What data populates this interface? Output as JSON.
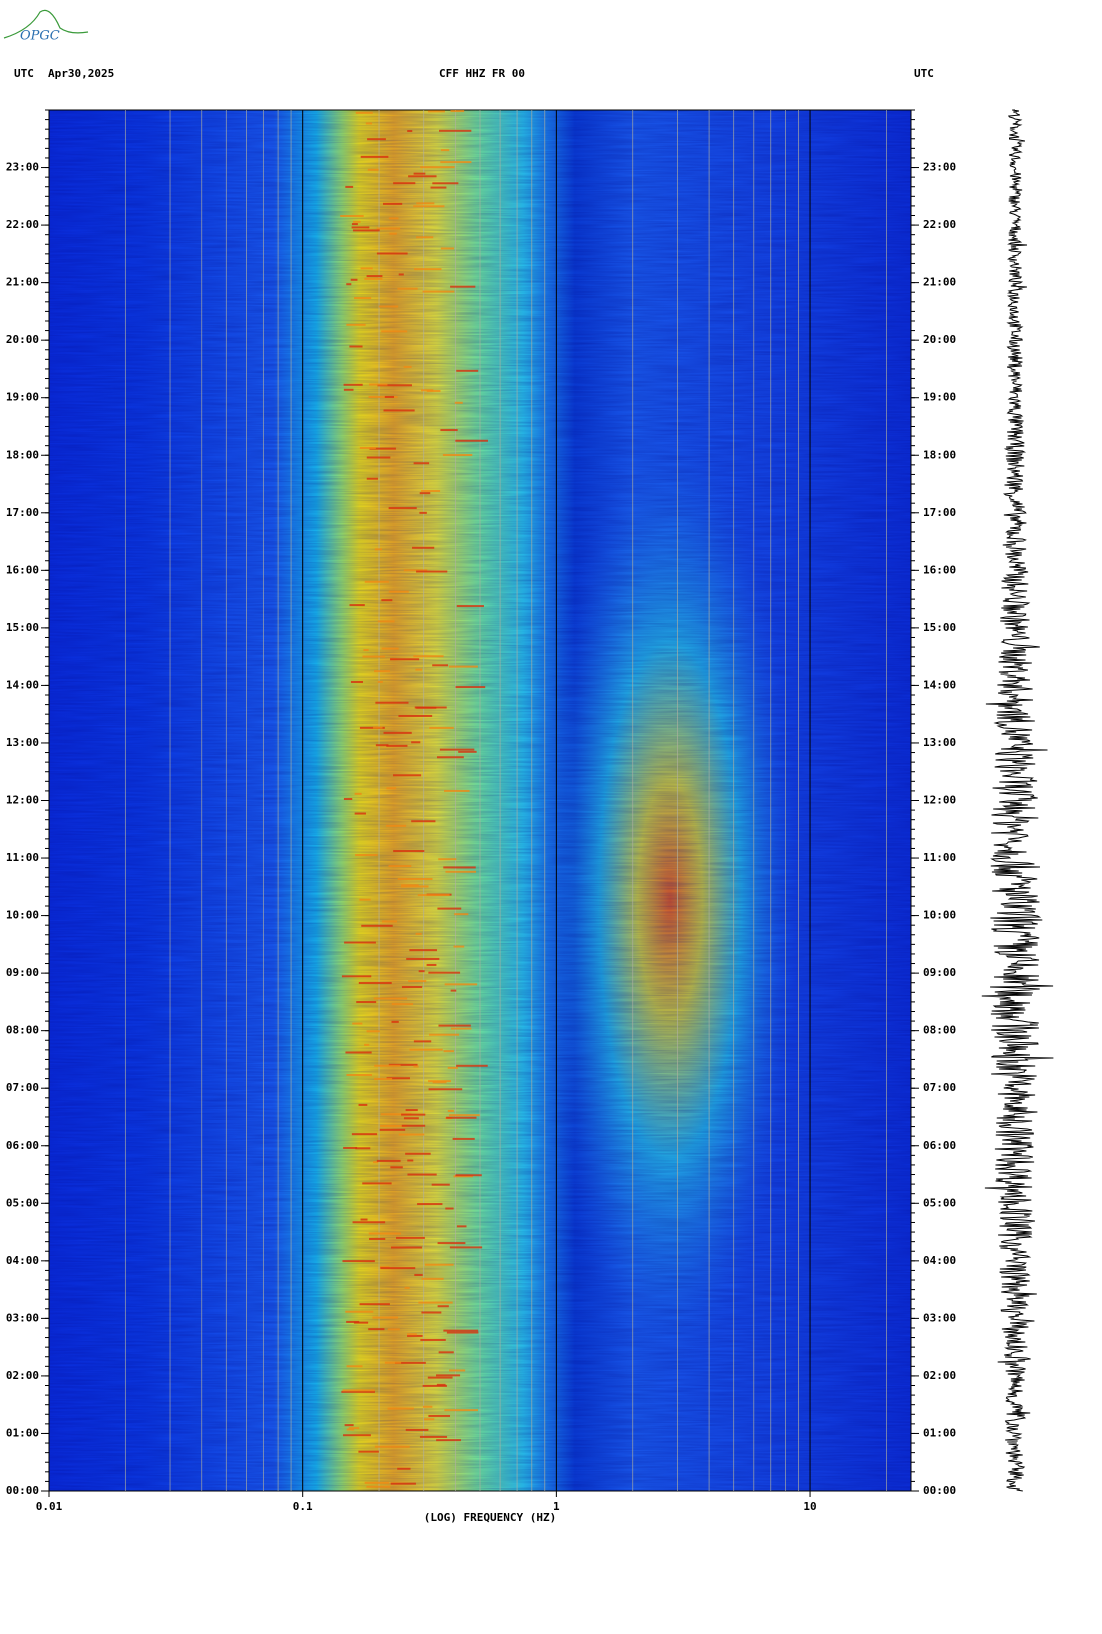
{
  "logo": "OPGC",
  "chart_data": {
    "type": "spectrogram",
    "title": "CFF HHZ FR 00",
    "timezone": "UTC",
    "date": "Apr30,2025",
    "x_label": "(LOG) FREQUENCY (HZ)",
    "x_log": true,
    "minor_grid": true,
    "xlim": [
      0.01,
      25
    ],
    "xticks": [
      0.01,
      0.1,
      1,
      10
    ],
    "ylim": [
      0,
      24
    ],
    "yticks": [
      {
        "value": 0,
        "label": "00:00"
      },
      {
        "value": 1,
        "label": "01:00"
      },
      {
        "value": 2,
        "label": "02:00"
      },
      {
        "value": 3,
        "label": "03:00"
      },
      {
        "value": 4,
        "label": "04:00"
      },
      {
        "value": 5,
        "label": "05:00"
      },
      {
        "value": 6,
        "label": "06:00"
      },
      {
        "value": 7,
        "label": "07:00"
      },
      {
        "value": 8,
        "label": "08:00"
      },
      {
        "value": 9,
        "label": "09:00"
      },
      {
        "value": 10,
        "label": "10:00"
      },
      {
        "value": 11,
        "label": "11:00"
      },
      {
        "value": 12,
        "label": "12:00"
      },
      {
        "value": 13,
        "label": "13:00"
      },
      {
        "value": 14,
        "label": "14:00"
      },
      {
        "value": 15,
        "label": "15:00"
      },
      {
        "value": 16,
        "label": "16:00"
      },
      {
        "value": 17,
        "label": "17:00"
      },
      {
        "value": 18,
        "label": "18:00"
      },
      {
        "value": 19,
        "label": "19:00"
      },
      {
        "value": 20,
        "label": "20:00"
      },
      {
        "value": 21,
        "label": "21:00"
      },
      {
        "value": 22,
        "label": "22:00"
      },
      {
        "value": 23,
        "label": "23:00"
      }
    ]
  }
}
